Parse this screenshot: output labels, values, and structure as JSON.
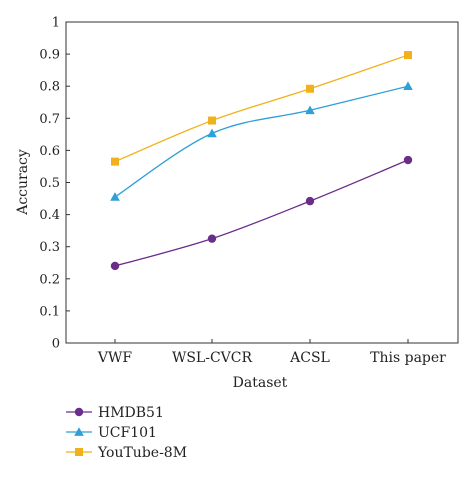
{
  "colors": {
    "axis": "#333333",
    "background": "#ffffff"
  },
  "chart_data": {
    "type": "line",
    "title": "",
    "xlabel": "Dataset",
    "ylabel": "Accuracy",
    "categories": [
      "VWF",
      "WSL-CVCR",
      "ACSL",
      "This paper"
    ],
    "ylim": [
      0,
      1
    ],
    "yticks": [
      0,
      0.1,
      0.2,
      0.3,
      0.4,
      0.5,
      0.6,
      0.7,
      0.8,
      0.9,
      1
    ],
    "ytick_labels": [
      "0",
      "0.1",
      "0.2",
      "0.3",
      "0.4",
      "0.5",
      "0.6",
      "0.7",
      "0.8",
      "0.9",
      "1"
    ],
    "grid": false,
    "legend_position": "bottom-left, below plot",
    "series": [
      {
        "name": "HMDB51",
        "values": [
          0.24,
          0.325,
          0.442,
          0.57
        ],
        "color": "#6a2d8a",
        "marker": "circle"
      },
      {
        "name": "UCF101",
        "values": [
          0.455,
          0.653,
          0.725,
          0.8
        ],
        "color": "#2e9fd8",
        "marker": "triangle"
      },
      {
        "name": "YouTube-8M",
        "values": [
          0.565,
          0.693,
          0.792,
          0.897
        ],
        "color": "#f0b11c",
        "marker": "square"
      }
    ]
  }
}
